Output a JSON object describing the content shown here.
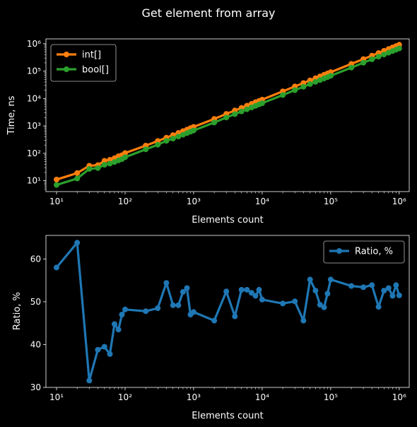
{
  "figure": {
    "title": "Get element from array"
  },
  "chart_data": [
    {
      "type": "line",
      "title": "",
      "xlabel": "Elements count",
      "ylabel": "Time, ns",
      "xscale": "log",
      "yscale": "log",
      "xlim": [
        7,
        1400000
      ],
      "ylim": [
        4,
        1500000
      ],
      "grid": false,
      "legend": "top-left",
      "x_ticks": [
        {
          "value": 10,
          "label": "10¹"
        },
        {
          "value": 100,
          "label": "10²"
        },
        {
          "value": 1000,
          "label": "10³"
        },
        {
          "value": 10000,
          "label": "10⁴"
        },
        {
          "value": 100000,
          "label": "10⁵"
        },
        {
          "value": 1000000,
          "label": "10⁶"
        }
      ],
      "y_ticks": [
        {
          "value": 10,
          "label": "10¹"
        },
        {
          "value": 100,
          "label": "10²"
        },
        {
          "value": 1000,
          "label": "10³"
        },
        {
          "value": 10000,
          "label": "10⁴"
        },
        {
          "value": 100000,
          "label": "10⁵"
        },
        {
          "value": 1000000,
          "label": "10⁶"
        }
      ],
      "x": [
        10,
        20,
        30,
        40,
        50,
        60,
        70,
        80,
        90,
        100,
        200,
        300,
        400,
        500,
        600,
        700,
        800,
        900,
        1000,
        2000,
        3000,
        4000,
        5000,
        6000,
        7000,
        8000,
        9000,
        10000,
        20000,
        30000,
        40000,
        50000,
        60000,
        70000,
        80000,
        90000,
        100000,
        200000,
        300000,
        400000,
        500000,
        600000,
        700000,
        800000,
        900000,
        1000000
      ],
      "series": [
        {
          "name": "int[]",
          "color": "#ff7f0e",
          "values": [
            11,
            19,
            35,
            37,
            53,
            58,
            66,
            78,
            85,
            102,
            190,
            280,
            370,
            460,
            555,
            645,
            730,
            830,
            920,
            1800,
            2750,
            3650,
            4550,
            5450,
            6350,
            7350,
            8200,
            9100,
            18300,
            27500,
            36600,
            45800,
            55000,
            64000,
            73200,
            82300,
            91500,
            183000,
            275000,
            366000,
            458000,
            550000,
            640000,
            730000,
            825000,
            915000
          ]
        },
        {
          "name": "bool[]",
          "color": "#2ca02c",
          "values": [
            7,
            12,
            27,
            29,
            38,
            42,
            48,
            55,
            61,
            72,
            140,
            205,
            285,
            345,
            410,
            475,
            545,
            615,
            680,
            1330,
            2030,
            2700,
            3370,
            4040,
            4710,
            5380,
            6070,
            6740,
            13400,
            20200,
            26900,
            33700,
            40500,
            47200,
            53900,
            60600,
            67300,
            134700,
            202000,
            269500,
            337000,
            404000,
            471000,
            538000,
            606000,
            673000
          ]
        }
      ]
    },
    {
      "type": "line",
      "title": "",
      "xlabel": "Elements count",
      "ylabel": "Ratio, %",
      "xscale": "log",
      "yscale": "linear",
      "xlim": [
        7,
        1400000
      ],
      "ylim": [
        30,
        65.5
      ],
      "grid": false,
      "legend": "top-right",
      "x_ticks": [
        {
          "value": 10,
          "label": "10¹"
        },
        {
          "value": 100,
          "label": "10²"
        },
        {
          "value": 1000,
          "label": "10³"
        },
        {
          "value": 10000,
          "label": "10⁴"
        },
        {
          "value": 100000,
          "label": "10⁵"
        },
        {
          "value": 1000000,
          "label": "10⁶"
        }
      ],
      "y_ticks": [
        {
          "value": 30,
          "label": "30"
        },
        {
          "value": 40,
          "label": "40"
        },
        {
          "value": 50,
          "label": "50"
        },
        {
          "value": 60,
          "label": "60"
        }
      ],
      "x": [
        10,
        20,
        30,
        40,
        50,
        60,
        70,
        80,
        90,
        100,
        200,
        300,
        400,
        500,
        600,
        700,
        800,
        900,
        1000,
        2000,
        3000,
        4000,
        5000,
        6000,
        7000,
        8000,
        9000,
        10000,
        20000,
        30000,
        40000,
        50000,
        60000,
        70000,
        80000,
        90000,
        100000,
        200000,
        300000,
        400000,
        500000,
        600000,
        700000,
        800000,
        900000,
        1000000
      ],
      "series": [
        {
          "name": "Ratio, %",
          "color": "#1f77b4",
          "values": [
            58,
            63.8,
            31.6,
            38.8,
            39.5,
            37.8,
            44.8,
            43.5,
            47,
            48.2,
            47.8,
            48.5,
            54.4,
            49.2,
            49.2,
            52.3,
            53.2,
            47,
            47.6,
            45.6,
            52.4,
            46.6,
            52.8,
            52.8,
            52.1,
            51.4,
            52.8,
            50.5,
            49.6,
            50.1,
            45.6,
            55.2,
            52.6,
            49.3,
            48.7,
            51.9,
            55.2,
            53.7,
            53.4,
            53.9,
            48.8,
            52.6,
            53.2,
            51.4,
            53.9,
            51.5
          ]
        }
      ]
    }
  ]
}
